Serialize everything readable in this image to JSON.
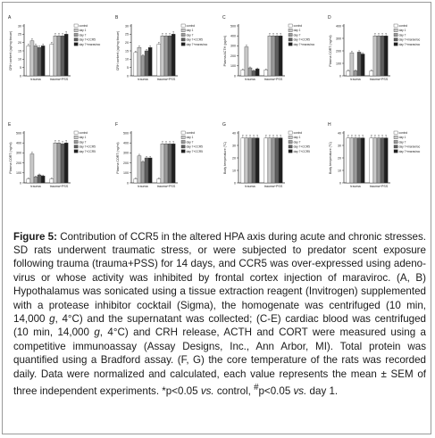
{
  "caption": {
    "label": "Figure 5:",
    "text": " Contribution of CCR5 in the altered HPA axis during acute and chronic stresses. SD rats underwent traumatic stress, or were subjected to predator scent exposure following trauma (trauma+PSS) for 14 days, and CCR5 was over-expressed using adeno-virus or whose activity was inhibited by frontal cortex injection of maraviroc. (A, B) Hypothalamus was sonicated using a tissue extraction reagent (Invitrogen) supplemented with a protease inhibitor cocktail (Sigma), the homogenate was centrifuged (10 min, 14,000 ",
    "g1": "g",
    "text2": ", 4°C) and the supernatant was collected; (C-E) cardiac blood was centrifuged (10 min, 14,000 ",
    "g2": "g",
    "text3": ", 4°C) and CRH release, ACTH and CORT were measured using a competitive immunoassay (Assay Designs, Inc., Ann Arbor, MI). Total protein was quantified using a Bradford assay. (F, G) the core temperature of the rats was recorded daily. Data were normalized and calculated, each value represents the mean ± SEM of three independent experiments. *p<0.05 ",
    "vs1": "vs.",
    "text4": " control, ",
    "hash": "#",
    "text5": "p<0.05 ",
    "vs2": "vs.",
    "text6": " day 1."
  },
  "colors": {
    "series": [
      "#ffffff",
      "#c8c8c8",
      "#9a9a9a",
      "#5e5e5e",
      "#1f1f1f"
    ],
    "stroke": "#333333"
  },
  "chart_data": [
    {
      "panel": "A",
      "type": "bar",
      "categories": [
        "trauma",
        "trauma+PSS"
      ],
      "ylabel": "CRH content (pg/mg tissue)",
      "legend": [
        "control",
        "day 1",
        "day 7",
        "day 7+CCR5",
        "day 7+maraviroc"
      ],
      "ylim": [
        0,
        30
      ],
      "yticks": [
        0,
        5,
        10,
        15,
        20,
        25,
        30
      ],
      "series": [
        {
          "name": "control",
          "values": [
            18,
            19
          ]
        },
        {
          "name": "day 1",
          "values": [
            21,
            24
          ]
        },
        {
          "name": "day 7",
          "values": [
            18,
            24
          ]
        },
        {
          "name": "day 7+CCR5",
          "values": [
            17,
            24
          ]
        },
        {
          "name": "day 7+maraviroc",
          "values": [
            18,
            25
          ]
        }
      ]
    },
    {
      "panel": "B",
      "type": "bar",
      "categories": [
        "trauma",
        "trauma+PSS"
      ],
      "ylabel": "CRH content (pg/mg tissue)",
      "legend": [
        "control",
        "day 1",
        "day 7",
        "day 7+CCR5",
        "day 7+maraviroc"
      ],
      "ylim": [
        0,
        30
      ],
      "yticks": [
        0,
        5,
        10,
        15,
        20,
        25,
        30
      ],
      "series": [
        {
          "name": "control",
          "values": [
            14,
            19
          ]
        },
        {
          "name": "day 1",
          "values": [
            17,
            24
          ]
        },
        {
          "name": "day 7",
          "values": [
            12,
            24
          ]
        },
        {
          "name": "day 7+CCR5",
          "values": [
            15,
            24
          ]
        },
        {
          "name": "day 7+maraviroc",
          "values": [
            17,
            25
          ]
        }
      ]
    },
    {
      "panel": "C",
      "type": "bar",
      "categories": [
        "trauma",
        "trauma+PSS"
      ],
      "ylabel": "Plasma ACTH (pg/ml)",
      "legend": [
        "control",
        "day 1",
        "day 7",
        "day 7+CCR5",
        "day 7+maraviroc"
      ],
      "ylim": [
        0,
        500
      ],
      "yticks": [
        0,
        100,
        200,
        300,
        400,
        500
      ],
      "series": [
        {
          "name": "control",
          "values": [
            60,
            60
          ]
        },
        {
          "name": "day 1",
          "values": [
            290,
            400
          ]
        },
        {
          "name": "day 7",
          "values": [
            80,
            400
          ]
        },
        {
          "name": "day 7+CCR5",
          "values": [
            50,
            400
          ]
        },
        {
          "name": "day 7+maraviroc",
          "values": [
            70,
            400
          ]
        }
      ]
    },
    {
      "panel": "D",
      "type": "bar",
      "categories": [
        "trauma",
        "trauma+PSS"
      ],
      "ylabel": "Plasma CORT (ng/ml)",
      "legend": [
        "control",
        "day 1",
        "day 7",
        "day 7+maraviroc",
        "day 7+maraviroc"
      ],
      "ylim": [
        0,
        400
      ],
      "yticks": [
        0,
        100,
        200,
        300,
        400
      ],
      "series": [
        {
          "name": "control",
          "values": [
            40,
            40
          ]
        },
        {
          "name": "day 1",
          "values": [
            185,
            320
          ]
        },
        {
          "name": "day 7",
          "values": [
            40,
            320
          ]
        },
        {
          "name": "day 7+maraviroc",
          "values": [
            190,
            320
          ]
        },
        {
          "name": "day 7+maraviroc",
          "values": [
            175,
            320
          ]
        }
      ]
    },
    {
      "panel": "E",
      "type": "bar",
      "categories": [
        "trauma",
        "trauma+PSS"
      ],
      "ylabel": "Plasma CORT (ng/ml)",
      "legend": [
        "control",
        "day 1",
        "day 7",
        "day 7+CCR5",
        "day 7+CCR5"
      ],
      "ylim": [
        0,
        500
      ],
      "yticks": [
        0,
        100,
        200,
        300,
        400,
        500
      ],
      "series": [
        {
          "name": "control",
          "values": [
            40,
            40
          ]
        },
        {
          "name": "day 1",
          "values": [
            290,
            400
          ]
        },
        {
          "name": "day 7",
          "values": [
            60,
            400
          ]
        },
        {
          "name": "day 7+CCR5",
          "values": [
            80,
            390
          ]
        },
        {
          "name": "day 7+CCR5",
          "values": [
            70,
            400
          ]
        }
      ]
    },
    {
      "panel": "F",
      "type": "bar",
      "categories": [
        "trauma",
        "trauma+PSS"
      ],
      "ylabel": "Plasma CORT (ng/ml)",
      "legend": [
        "control",
        "day 1",
        "day 7",
        "day 7+CCR5",
        "day 7+CCR5"
      ],
      "ylim": [
        0,
        500
      ],
      "yticks": [
        0,
        100,
        200,
        300,
        400,
        500
      ],
      "series": [
        {
          "name": "control",
          "values": [
            40,
            40
          ]
        },
        {
          "name": "day 1",
          "values": [
            270,
            390
          ]
        },
        {
          "name": "day 7",
          "values": [
            210,
            390
          ]
        },
        {
          "name": "day 7+CCR5",
          "values": [
            250,
            390
          ]
        },
        {
          "name": "day 7+CCR5",
          "values": [
            250,
            390
          ]
        }
      ]
    },
    {
      "panel": "G",
      "type": "bar",
      "categories": [
        "trauma",
        "trauma+PSS"
      ],
      "ylabel": "Body temperature (°C)",
      "legend": [
        "control",
        "day 1",
        "day 7",
        "day 7+CCR5",
        "day 7+CCR5"
      ],
      "ylim": [
        0,
        40
      ],
      "yticks": [
        0,
        10,
        20,
        30,
        40
      ],
      "series": [
        {
          "name": "control",
          "values": [
            36,
            36
          ]
        },
        {
          "name": "day 1",
          "values": [
            36,
            36
          ]
        },
        {
          "name": "day 7",
          "values": [
            36,
            36
          ]
        },
        {
          "name": "day 7+CCR5",
          "values": [
            36,
            36
          ]
        },
        {
          "name": "day 7+CCR5",
          "values": [
            36,
            36
          ]
        }
      ]
    },
    {
      "panel": "H",
      "type": "bar",
      "categories": [
        "trauma",
        "trauma+PSS"
      ],
      "ylabel": "Body temperature (°C)",
      "legend": [
        "control",
        "day 1",
        "day 7",
        "day 7+maraviroc",
        "day 7+maraviroc"
      ],
      "ylim": [
        0,
        40
      ],
      "yticks": [
        0,
        10,
        20,
        30,
        40
      ],
      "series": [
        {
          "name": "control",
          "values": [
            36,
            36
          ]
        },
        {
          "name": "day 1",
          "values": [
            36,
            36
          ]
        },
        {
          "name": "day 7",
          "values": [
            36,
            36
          ]
        },
        {
          "name": "day 7+maraviroc",
          "values": [
            36,
            36
          ]
        },
        {
          "name": "day 7+maraviroc",
          "values": [
            36,
            36
          ]
        }
      ]
    }
  ]
}
